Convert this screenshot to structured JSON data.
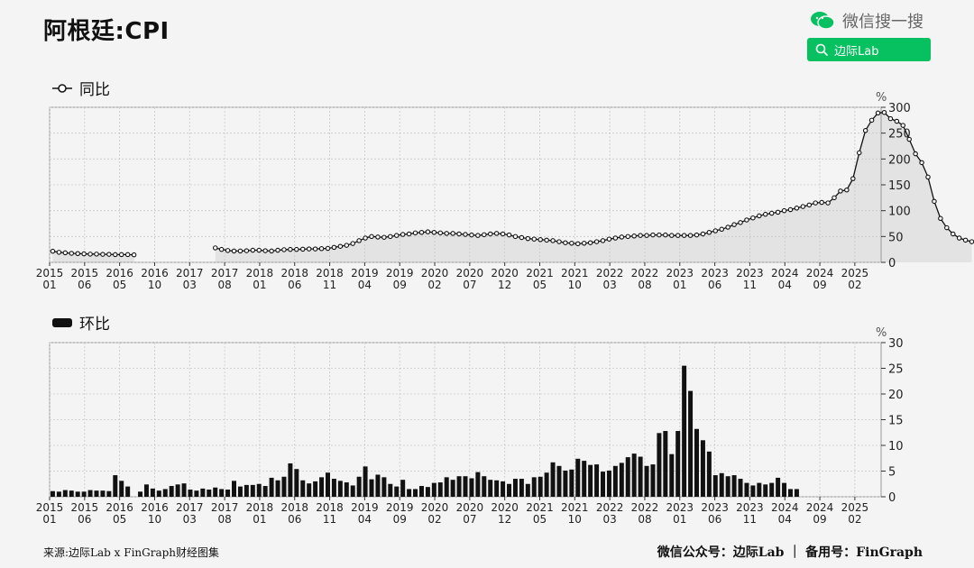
{
  "header": {
    "title": "阿根廷:CPI",
    "wechat_label": "微信搜一搜",
    "search_label": "边际Lab"
  },
  "footer": {
    "source": "来源:边际Lab x FinGraph财经图集",
    "account": "微信公众号：边际Lab ｜ 备用号：FinGraph"
  },
  "colors": {
    "accent": "#07c160",
    "bar": "#111111",
    "area": "#e3e3e3",
    "grid": "#c8c8c8"
  },
  "chart_data": [
    {
      "type": "line",
      "legend": "同比",
      "unit": "%",
      "ylim": [
        0,
        300
      ],
      "yticks": [
        0,
        50,
        100,
        150,
        200,
        250,
        300
      ],
      "grid": true,
      "area_fill": true,
      "x_tick_labels": [
        [
          "2015",
          "01"
        ],
        [
          "2015",
          "06"
        ],
        [
          "2016",
          "05"
        ],
        [
          "2016",
          "10"
        ],
        [
          "2017",
          "03"
        ],
        [
          "2017",
          "08"
        ],
        [
          "2018",
          "01"
        ],
        [
          "2018",
          "06"
        ],
        [
          "2018",
          "11"
        ],
        [
          "2019",
          "04"
        ],
        [
          "2019",
          "09"
        ],
        [
          "2020",
          "02"
        ],
        [
          "2020",
          "07"
        ],
        [
          "2020",
          "12"
        ],
        [
          "2021",
          "05"
        ],
        [
          "2021",
          "10"
        ],
        [
          "2022",
          "03"
        ],
        [
          "2022",
          "08"
        ],
        [
          "2023",
          "01"
        ],
        [
          "2023",
          "06"
        ],
        [
          "2023",
          "11"
        ],
        [
          "2024",
          "04"
        ],
        [
          "2024",
          "09"
        ],
        [
          "2025",
          "02"
        ]
      ],
      "series": [
        {
          "start": "2015-01",
          "values": [
            21.5,
            19.5,
            18.5,
            17.5,
            17,
            16.5,
            16,
            16,
            15.5,
            15.5,
            15,
            15,
            15,
            14.5,
            null,
            null,
            null,
            null,
            null,
            null,
            null,
            null,
            null,
            null,
            null,
            null,
            28,
            25,
            23,
            22,
            22,
            22.5,
            23.5,
            23.5,
            22.5,
            22,
            23.5,
            24.5,
            25,
            25,
            25.5,
            26,
            26,
            26.5,
            27,
            29,
            31,
            33,
            36.5,
            42,
            47,
            50,
            49,
            48.5,
            50,
            52,
            54,
            55,
            57,
            58,
            59,
            58,
            57,
            56,
            56,
            55,
            54,
            53,
            52,
            53.5,
            55,
            56,
            55,
            53,
            50,
            48,
            46,
            45,
            44,
            43,
            42,
            40,
            38,
            37,
            36,
            37,
            38,
            40,
            42,
            45,
            47,
            49,
            50,
            51,
            52,
            52,
            53,
            53,
            53,
            52,
            52,
            52,
            52,
            53,
            55,
            58,
            61,
            64,
            68,
            73,
            77,
            82,
            86,
            90,
            93,
            95,
            97,
            100,
            102,
            105,
            108,
            111,
            115,
            116,
            115,
            125,
            138,
            140,
            162,
            212,
            255,
            275,
            289,
            290,
            278,
            273,
            265,
            238,
            210,
            193,
            165,
            118,
            85,
            67,
            55,
            47,
            43,
            40
          ]
        }
      ]
    },
    {
      "type": "bar",
      "legend": "环比",
      "unit": "%",
      "ylim": [
        0,
        30
      ],
      "yticks": [
        0,
        5,
        10,
        15,
        20,
        25,
        30
      ],
      "grid": true,
      "x_tick_labels": [
        [
          "2015",
          "01"
        ],
        [
          "2015",
          "06"
        ],
        [
          "2016",
          "05"
        ],
        [
          "2016",
          "10"
        ],
        [
          "2017",
          "03"
        ],
        [
          "2017",
          "08"
        ],
        [
          "2018",
          "01"
        ],
        [
          "2018",
          "06"
        ],
        [
          "2018",
          "11"
        ],
        [
          "2019",
          "04"
        ],
        [
          "2019",
          "09"
        ],
        [
          "2020",
          "02"
        ],
        [
          "2020",
          "07"
        ],
        [
          "2020",
          "12"
        ],
        [
          "2021",
          "05"
        ],
        [
          "2021",
          "10"
        ],
        [
          "2022",
          "03"
        ],
        [
          "2022",
          "08"
        ],
        [
          "2023",
          "01"
        ],
        [
          "2023",
          "06"
        ],
        [
          "2023",
          "11"
        ],
        [
          "2024",
          "04"
        ],
        [
          "2024",
          "09"
        ],
        [
          "2025",
          "02"
        ]
      ],
      "series": [
        {
          "start": "2015-01",
          "values": [
            1.1,
            1.0,
            1.3,
            1.2,
            1.0,
            1.0,
            1.3,
            1.2,
            1.2,
            1.1,
            4.2,
            3.1,
            2.0,
            null,
            1.0,
            2.4,
            1.6,
            1.2,
            1.5,
            2.1,
            2.4,
            2.6,
            1.4,
            1.2,
            1.6,
            1.4,
            1.8,
            1.5,
            1.4,
            3.1,
            2.0,
            2.3,
            2.3,
            2.5,
            2.1,
            3.7,
            3.2,
            3.9,
            6.5,
            5.4,
            3.2,
            2.6,
            3.0,
            3.8,
            4.7,
            3.5,
            3.1,
            2.8,
            2.2,
            3.9,
            5.9,
            3.4,
            4.3,
            3.8,
            2.5,
            2.0,
            3.3,
            1.5,
            1.5,
            2.1,
            1.9,
            2.7,
            2.8,
            3.8,
            3.3,
            4.0,
            4.0,
            3.6,
            4.8,
            4.0,
            3.3,
            3.2,
            3.0,
            2.5,
            3.5,
            3.5,
            2.5,
            3.8,
            3.9,
            4.7,
            6.7,
            6.0,
            5.1,
            5.3,
            7.4,
            7.0,
            6.2,
            6.3,
            4.9,
            5.1,
            6.0,
            6.6,
            7.7,
            8.4,
            7.8,
            6.0,
            6.3,
            12.4,
            12.8,
            8.3,
            12.8,
            25.5,
            20.6,
            13.2,
            11.0,
            8.8,
            4.2,
            4.6,
            4.0,
            4.2,
            3.5,
            2.7,
            2.2,
            2.7,
            2.4,
            2.7,
            3.7,
            2.7,
            1.5,
            1.5
          ]
        }
      ]
    }
  ]
}
